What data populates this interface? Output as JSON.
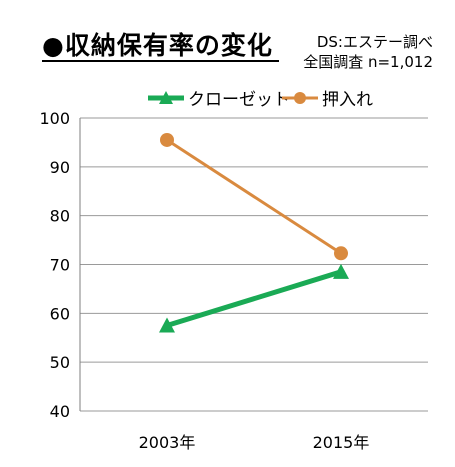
{
  "title": "●収納保有率の変化",
  "source_line1": "DS:エステー調べ",
  "source_line2": "全国調査 n=1,012",
  "chart_data": {
    "type": "line",
    "categories": [
      "2003年",
      "2015年"
    ],
    "series": [
      {
        "name": "クローゼット",
        "values": [
          57.5,
          68.5
        ],
        "color": "#1aaa55",
        "marker": "triangle"
      },
      {
        "name": "押入れ",
        "values": [
          95.5,
          72.3
        ],
        "color": "#d98a3f",
        "marker": "circle"
      }
    ],
    "ylim": [
      40,
      100
    ],
    "yticks": [
      40,
      50,
      60,
      70,
      80,
      90,
      100
    ],
    "grid": true,
    "legend": "top"
  }
}
